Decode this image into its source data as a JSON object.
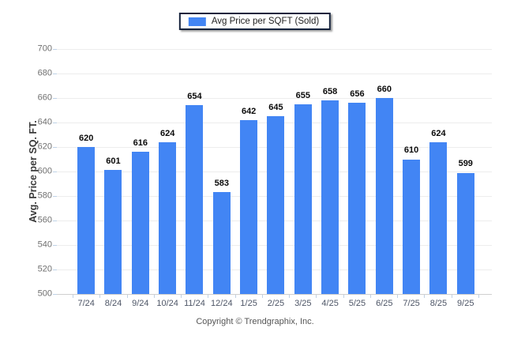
{
  "legend": {
    "label": "Avg Price per SQFT (Sold)"
  },
  "footer": {
    "copyright": "Copyright © Trendgraphix, Inc."
  },
  "chart_data": {
    "type": "bar",
    "title": "",
    "series_name": "Avg Price per SQFT (Sold)",
    "categories": [
      "7/24",
      "8/24",
      "9/24",
      "10/24",
      "11/24",
      "12/24",
      "1/25",
      "2/25",
      "3/25",
      "4/25",
      "5/25",
      "6/25",
      "7/25",
      "8/25",
      "9/25"
    ],
    "values": [
      620,
      601,
      616,
      624,
      654,
      583,
      642,
      645,
      655,
      658,
      656,
      660,
      610,
      624,
      599
    ],
    "xlabel": "",
    "ylabel": "Avg. Price per SQ. FT.",
    "ylim": [
      500,
      700
    ],
    "ytick_step": 20,
    "yticks": [
      500,
      520,
      540,
      560,
      580,
      600,
      620,
      640,
      660,
      680,
      700
    ],
    "bar_color": "#4285f4",
    "grid": "horizontal",
    "gridline_color": "#ededed",
    "axis_line_color": "#cfcfcf",
    "legend_position": "top-center",
    "legend_border_color": "#16233d",
    "value_labels": true
  }
}
